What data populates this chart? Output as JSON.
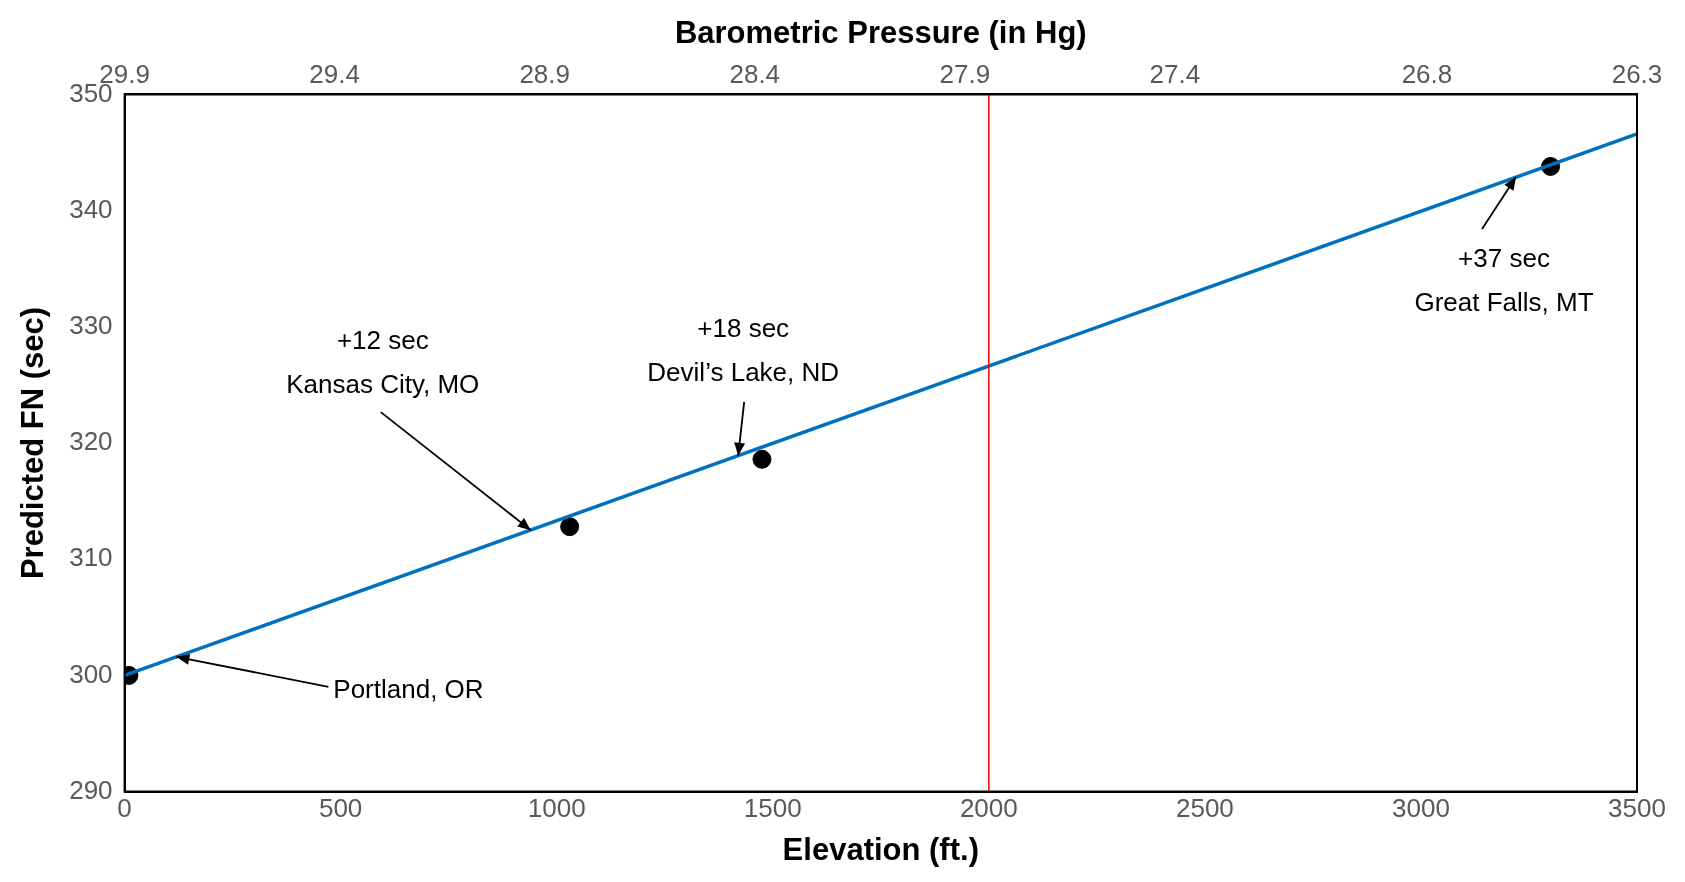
{
  "chart_data": {
    "type": "line",
    "xlabel": "Elevation (ft.)",
    "ylabel": "Predicted FN (sec)",
    "x2label": "Barometric Pressure (in Hg)",
    "xlim": [
      0,
      3500
    ],
    "xticks": [
      0,
      500,
      1000,
      1500,
      2000,
      2500,
      3000,
      3500
    ],
    "x2lim": [
      29.9,
      26.3
    ],
    "x2ticks": [
      29.9,
      29.4,
      28.9,
      28.4,
      27.9,
      27.4,
      26.8,
      26.3
    ],
    "ylim": [
      290,
      350
    ],
    "yticks": [
      290,
      300,
      310,
      320,
      330,
      340,
      350
    ],
    "grid": false,
    "legend": false,
    "series": [
      {
        "type": "line",
        "color": "#0070c0",
        "x": [
          0,
          3500
        ],
        "values": [
          300,
          346.6
        ],
        "marker": "none",
        "line_style": "solid"
      },
      {
        "type": "scatter",
        "color": "#000000",
        "x": [
          10,
          1030,
          1475,
          3300
        ],
        "values": [
          300,
          312.8,
          318.6,
          343.8
        ],
        "marker": "circle"
      }
    ],
    "ref_lines": [
      {
        "axis": "x",
        "value": 2000,
        "color": "#ff0000",
        "line_style": "solid"
      }
    ],
    "annotations": [
      {
        "text": "+12 sec\nKansas City, MO",
        "x": 940,
        "y": 312.5
      },
      {
        "text": "+18 sec\nDevil’s Lake, ND",
        "x": 1420,
        "y": 318.9
      },
      {
        "text": "+37 sec\nGreat Falls, MT",
        "x": 3220,
        "y": 342.9
      },
      {
        "text": "Portland, OR",
        "x": 120,
        "y": 301.6
      }
    ]
  }
}
